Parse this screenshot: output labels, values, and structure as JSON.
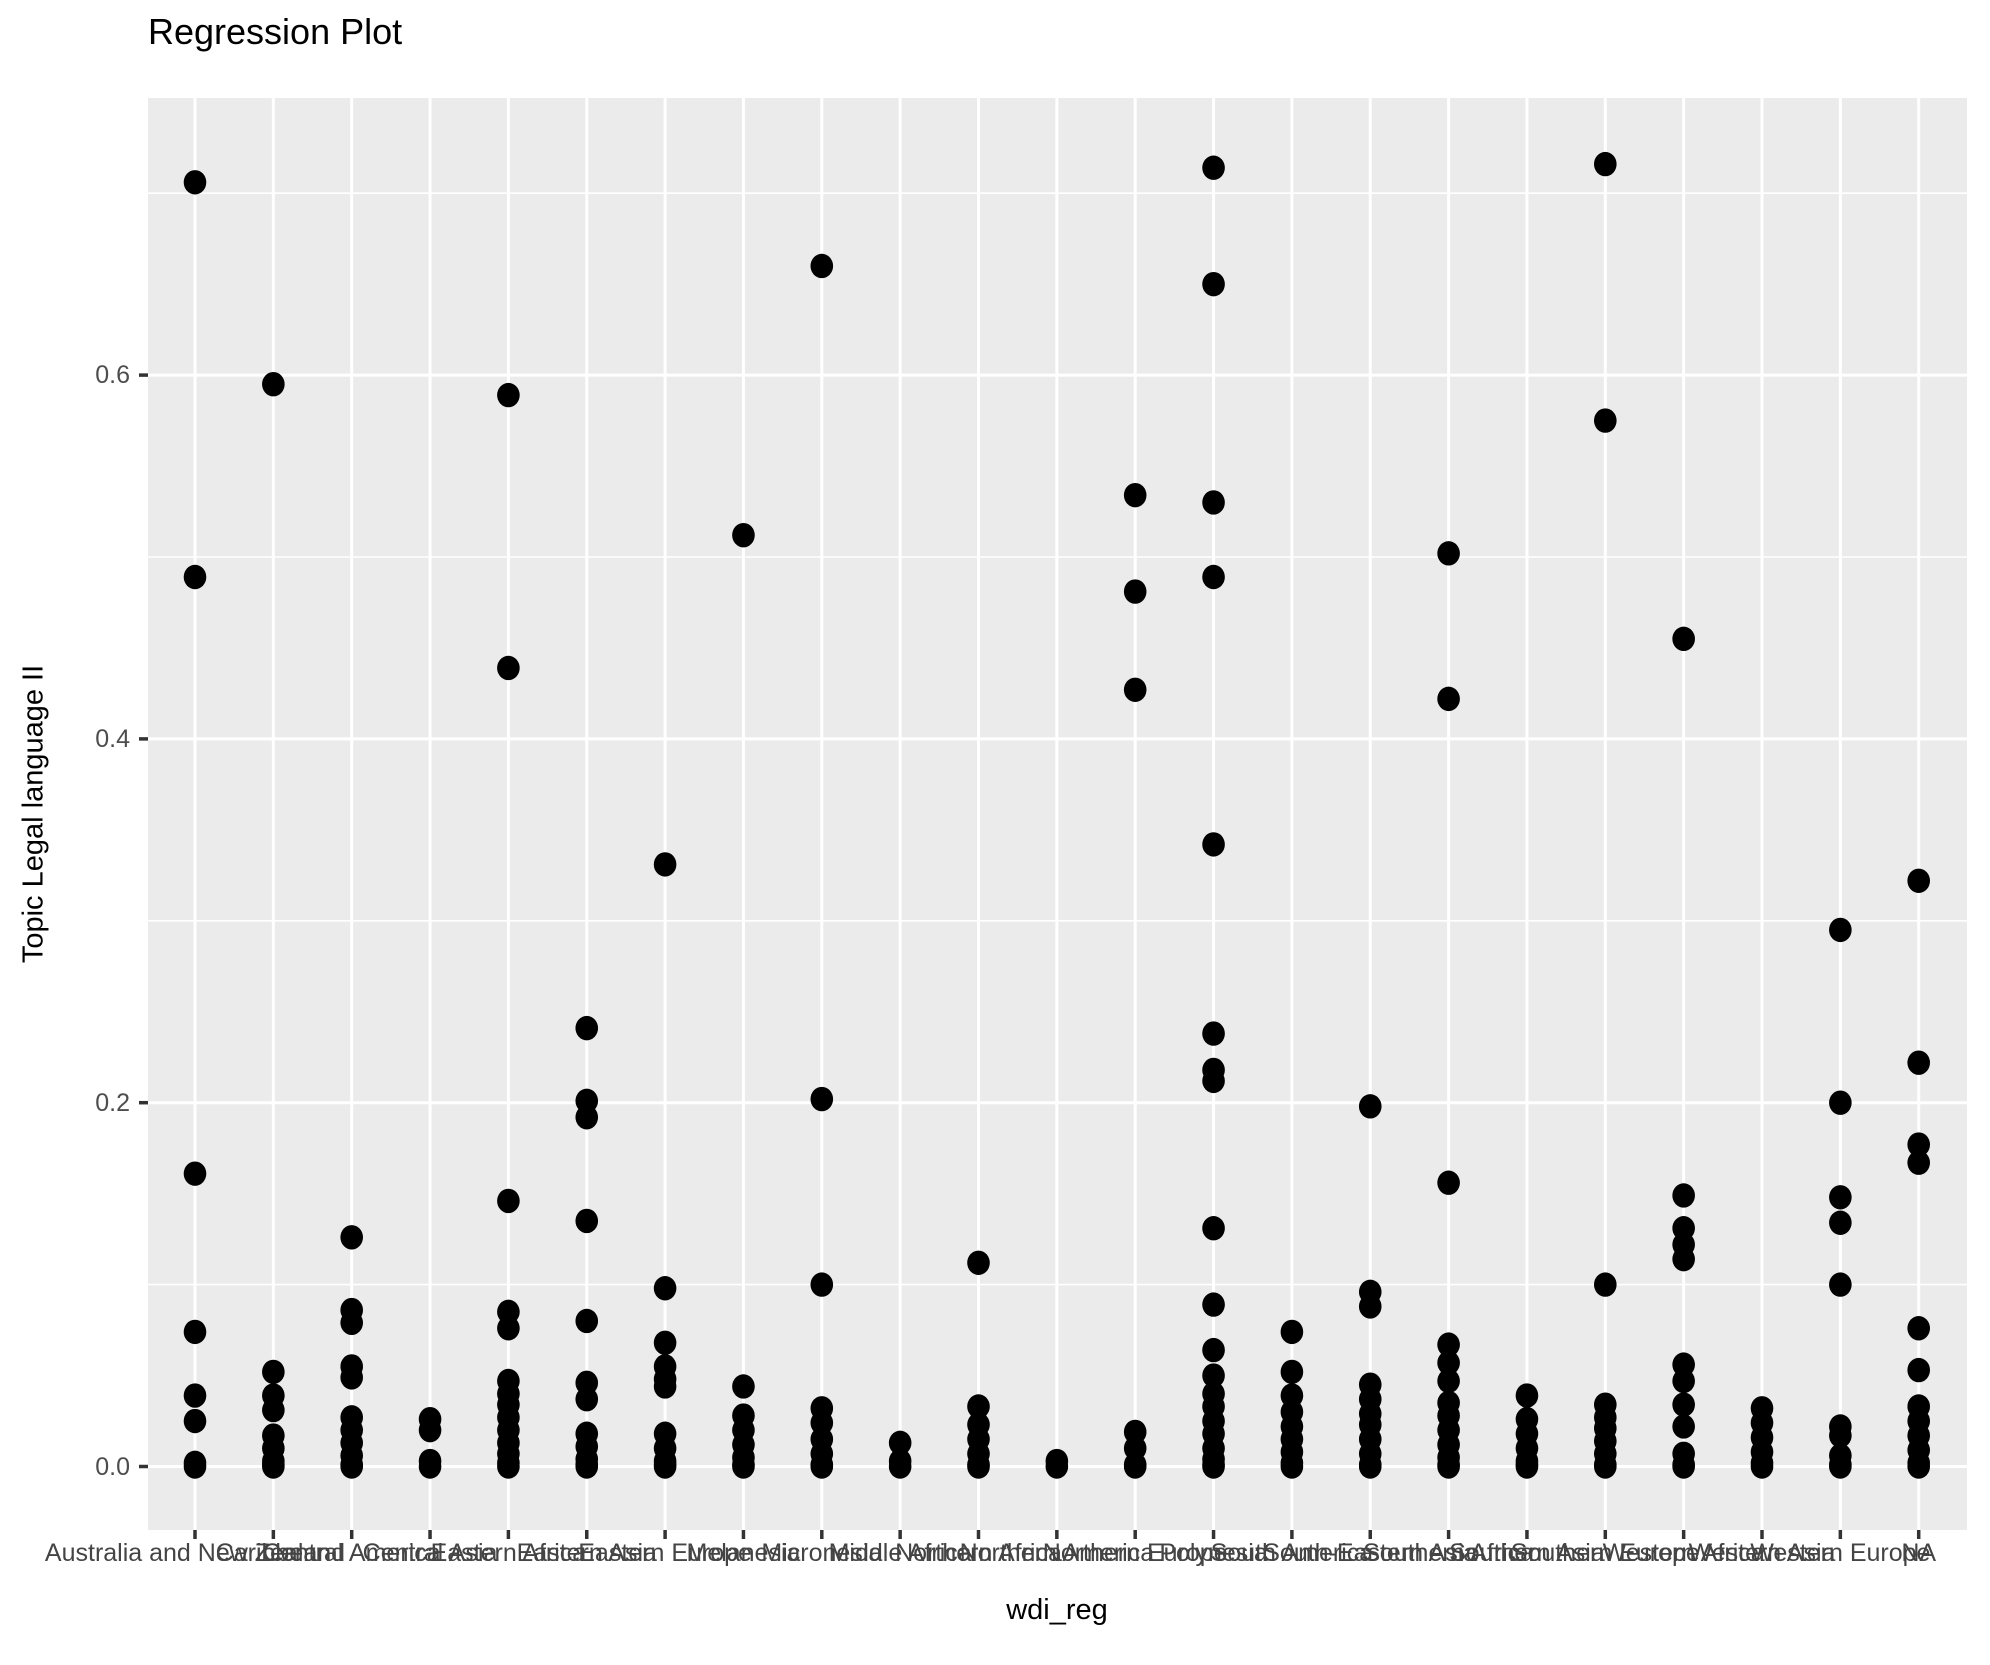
{
  "title": "Regression Plot",
  "chart_data": {
    "type": "scatter",
    "subtype": "strip-plot-discrete-x",
    "title": "Regression Plot",
    "xlabel": "wdi_reg",
    "ylabel": "Topic Legal language II",
    "legend_position": "none",
    "grid": "white major gridlines at y ticks and each x category, white minor gridlines at 0.1 intervals, grey panel",
    "panel_color": "#EBEBEB",
    "gridline_color": "#FFFFFF",
    "point_color": "#000000",
    "tick_label_color": "#4D4D4D",
    "axis_tick_color": "#333333",
    "y_ticks": [
      "0.0",
      "0.2",
      "0.4",
      "0.6"
    ],
    "y_tick_values": [
      0.0,
      0.2,
      0.4,
      0.6
    ],
    "y_minor_values": [
      0.1,
      0.3,
      0.5,
      0.7
    ],
    "ylim": [
      -0.035,
      0.752
    ],
    "categories": [
      "Australia and New Zealand",
      "Caribbean",
      "Central America",
      "Central Asia",
      "Eastern Africa",
      "Eastern Asia",
      "Eastern Europe",
      "Melanesia",
      "Micronesia",
      "Middle Africa",
      "Northern Africa",
      "Northern America",
      "Northern Europe",
      "Polynesia",
      "South America",
      "South-Eastern Asia",
      "Southern Africa",
      "Southern Asia",
      "Southern Europe",
      "Western Africa",
      "Western Asia",
      "Western Europe",
      "NA"
    ],
    "series": [
      {
        "name": "Australia and New Zealand",
        "values": [
          0.706,
          0.489,
          0.161,
          0.074,
          0.039,
          0.025,
          0.002,
          0.0
        ]
      },
      {
        "name": "Caribbean",
        "values": [
          0.595,
          0.052,
          0.039,
          0.031,
          0.017,
          0.01,
          0.003,
          0.001,
          0.0
        ]
      },
      {
        "name": "Central America",
        "values": [
          0.126,
          0.086,
          0.079,
          0.055,
          0.049,
          0.027,
          0.02,
          0.013,
          0.006,
          0.001,
          0.0
        ]
      },
      {
        "name": "Central Asia",
        "values": [
          0.026,
          0.02,
          0.003,
          0.0
        ]
      },
      {
        "name": "Eastern Africa",
        "values": [
          0.589,
          0.439,
          0.146,
          0.085,
          0.076,
          0.047,
          0.04,
          0.034,
          0.027,
          0.02,
          0.013,
          0.007,
          0.002,
          0.0
        ]
      },
      {
        "name": "Eastern Asia",
        "values": [
          0.241,
          0.201,
          0.192,
          0.135,
          0.08,
          0.046,
          0.037,
          0.018,
          0.011,
          0.004,
          0.001,
          0.0
        ]
      },
      {
        "name": "Eastern Europe",
        "values": [
          0.331,
          0.098,
          0.068,
          0.055,
          0.048,
          0.044,
          0.018,
          0.01,
          0.003,
          0.001,
          0.0
        ]
      },
      {
        "name": "Melanesia",
        "values": [
          0.512,
          0.044,
          0.028,
          0.02,
          0.012,
          0.005,
          0.001,
          0.0
        ]
      },
      {
        "name": "Micronesia",
        "values": [
          0.66,
          0.202,
          0.1,
          0.032,
          0.024,
          0.015,
          0.007,
          0.001,
          0.0
        ]
      },
      {
        "name": "Middle Africa",
        "values": [
          0.013,
          0.003,
          0.0
        ]
      },
      {
        "name": "Northern Africa",
        "values": [
          0.112,
          0.033,
          0.023,
          0.015,
          0.007,
          0.001,
          0.0
        ]
      },
      {
        "name": "Northern America",
        "values": [
          0.003,
          0.0
        ]
      },
      {
        "name": "Northern Europe",
        "values": [
          0.534,
          0.481,
          0.427,
          0.019,
          0.01,
          0.001,
          0.0
        ]
      },
      {
        "name": "Polynesia",
        "values": [
          0.714,
          0.65,
          0.53,
          0.489,
          0.342,
          0.238,
          0.218,
          0.212,
          0.131,
          0.089,
          0.064,
          0.05,
          0.04,
          0.033,
          0.025,
          0.018,
          0.01,
          0.004,
          0.001,
          0.0
        ]
      },
      {
        "name": "South America",
        "values": [
          0.074,
          0.052,
          0.039,
          0.03,
          0.022,
          0.015,
          0.008,
          0.002,
          0.0
        ]
      },
      {
        "name": "South-Eastern Asia",
        "values": [
          0.198,
          0.096,
          0.088,
          0.045,
          0.037,
          0.029,
          0.023,
          0.015,
          0.007,
          0.001,
          0.0
        ]
      },
      {
        "name": "Southern Africa",
        "values": [
          0.502,
          0.422,
          0.156,
          0.067,
          0.057,
          0.047,
          0.035,
          0.028,
          0.02,
          0.012,
          0.005,
          0.001,
          0.0
        ]
      },
      {
        "name": "Southern Asia",
        "values": [
          0.039,
          0.026,
          0.018,
          0.01,
          0.003,
          0.001,
          0.0
        ]
      },
      {
        "name": "Southern Europe",
        "values": [
          0.716,
          0.575,
          0.1,
          0.034,
          0.027,
          0.021,
          0.014,
          0.007,
          0.001,
          0.0
        ]
      },
      {
        "name": "Western Africa",
        "values": [
          0.455,
          0.149,
          0.131,
          0.122,
          0.114,
          0.056,
          0.047,
          0.034,
          0.022,
          0.007,
          0.001,
          0.0
        ]
      },
      {
        "name": "Western Asia",
        "values": [
          0.032,
          0.024,
          0.016,
          0.008,
          0.002,
          0.0
        ]
      },
      {
        "name": "Western Europe",
        "values": [
          0.295,
          0.2,
          0.148,
          0.134,
          0.1,
          0.022,
          0.017,
          0.006,
          0.001,
          0.0
        ]
      },
      {
        "name": "NA",
        "values": [
          0.322,
          0.222,
          0.177,
          0.167,
          0.076,
          0.053,
          0.033,
          0.025,
          0.017,
          0.009,
          0.002,
          0.0
        ]
      }
    ]
  }
}
